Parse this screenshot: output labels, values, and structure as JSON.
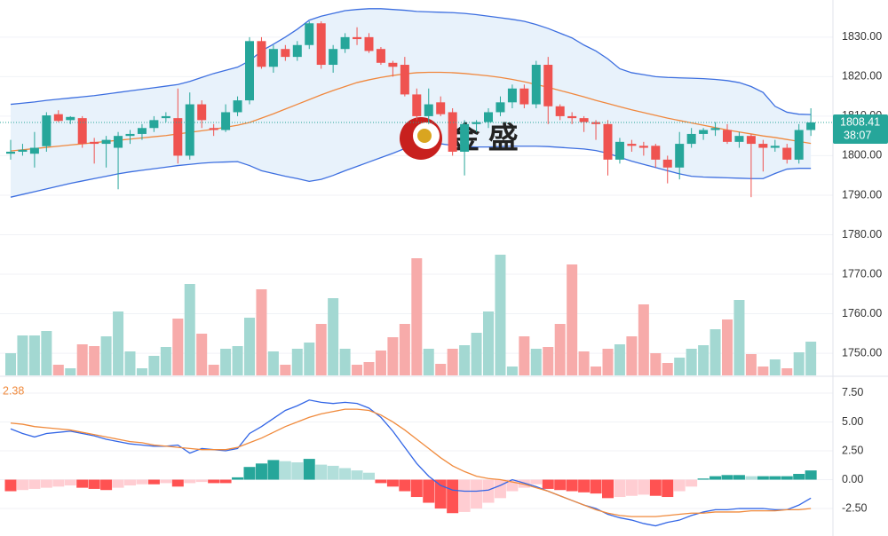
{
  "chart_data": [
    {
      "type": "candlestick",
      "open": [
        1800.5,
        1801,
        1800.5,
        1802.4,
        1810.5,
        1809,
        1809.5,
        1803.5,
        1803,
        1802,
        1805,
        1805.5,
        1807,
        1809.5,
        1809.5,
        1800,
        1813,
        1807,
        1806.5,
        1811,
        1814,
        1829,
        1822.5,
        1827,
        1825,
        1828,
        1833.5,
        1823,
        1827,
        1830,
        1830,
        1827,
        1823.5,
        1823,
        1815.5,
        1810,
        1813.5,
        1811,
        1801,
        1808,
        1808.5,
        1811,
        1813.5,
        1817,
        1813,
        1823,
        1812.5,
        1810,
        1809.5,
        1808.5,
        1808,
        1799,
        1803,
        1802.5,
        1802.5,
        1799,
        1797,
        1803,
        1805.5,
        1806.5,
        1806.5,
        1803.5,
        1805,
        1803,
        1802,
        1802,
        1799,
        1806.5
      ],
      "high": [
        1804,
        1803,
        1806,
        1811,
        1811.5,
        1810,
        1810,
        1804.5,
        1805,
        1806,
        1806.5,
        1808,
        1810,
        1811,
        1817,
        1816,
        1814,
        1808,
        1813,
        1815,
        1830,
        1830,
        1828,
        1828,
        1829,
        1834,
        1834,
        1828,
        1831,
        1832.5,
        1831,
        1827.5,
        1824,
        1825,
        1817,
        1817,
        1815,
        1812,
        1809,
        1809,
        1812,
        1815,
        1818,
        1818,
        1824,
        1825,
        1813,
        1811,
        1810,
        1809,
        1809,
        1804.5,
        1804,
        1803.5,
        1803,
        1800,
        1806,
        1807,
        1807,
        1808.5,
        1808,
        1806,
        1805.5,
        1804,
        1804,
        1803,
        1808,
        1812
      ],
      "low": [
        1799,
        1800,
        1797,
        1801,
        1808.5,
        1808,
        1802,
        1798,
        1797,
        1791.5,
        1803,
        1804,
        1806,
        1808.5,
        1798,
        1799,
        1807,
        1805,
        1806,
        1810,
        1813,
        1822,
        1821,
        1824,
        1824,
        1827,
        1822,
        1821,
        1826,
        1828,
        1826,
        1823,
        1820,
        1815,
        1809,
        1808,
        1810,
        1800,
        1795,
        1806,
        1807,
        1810,
        1812,
        1812,
        1812,
        1808,
        1809,
        1808,
        1806,
        1804,
        1795,
        1798,
        1801,
        1800,
        1797,
        1793,
        1794,
        1802,
        1804,
        1805,
        1803,
        1802,
        1789.5,
        1796,
        1801,
        1798,
        1798,
        1805
      ],
      "close": [
        1801,
        1801.5,
        1802,
        1810.2,
        1808.8,
        1809.8,
        1803,
        1803,
        1804,
        1805,
        1805.5,
        1807,
        1809,
        1810,
        1800,
        1813,
        1809,
        1806.5,
        1811,
        1814,
        1829,
        1822.5,
        1827,
        1825,
        1828,
        1833.5,
        1823,
        1827,
        1830,
        1829.5,
        1826.5,
        1823.5,
        1822.5,
        1815.5,
        1810,
        1813,
        1810.5,
        1801,
        1808,
        1808.5,
        1811,
        1813.5,
        1817,
        1813,
        1823,
        1812.5,
        1810,
        1809.5,
        1808.5,
        1808,
        1799,
        1803.5,
        1802.5,
        1802,
        1799,
        1797,
        1803,
        1805.5,
        1806.5,
        1807,
        1803.5,
        1805,
        1803,
        1802,
        1802.5,
        1799,
        1806.5,
        1808.41
      ],
      "up_color": "#26a69a",
      "down_color": "#ef5350",
      "series": [
        {
          "color": "#3d6fe0",
          "values": [
            1813,
            1813.3,
            1813.6,
            1814,
            1814.3,
            1814.6,
            1814.9,
            1815.2,
            1815.6,
            1816,
            1816.4,
            1816.8,
            1817.2,
            1817.6,
            1818,
            1818.8,
            1819.8,
            1820.8,
            1821.6,
            1822.4,
            1824,
            1826.5,
            1828.2,
            1830,
            1832,
            1834.3,
            1835.3,
            1836,
            1836.7,
            1837,
            1837.2,
            1837.2,
            1837,
            1836.8,
            1836.5,
            1836.4,
            1836.3,
            1836.2,
            1836,
            1835.7,
            1835.3,
            1834.9,
            1834.5,
            1834,
            1833.2,
            1832.2,
            1831,
            1829.8,
            1828,
            1826.5,
            1824.5,
            1822,
            1821,
            1820.5,
            1820,
            1819.8,
            1819.7,
            1819.6,
            1819.5,
            1819.3,
            1819,
            1818.5,
            1817.5,
            1816,
            1812.5,
            1811,
            1810.5,
            1810.4
          ]
        },
        {
          "color": "#f0883e",
          "values": [
            1801.2,
            1801.5,
            1801.8,
            1802.1,
            1802.4,
            1802.7,
            1803,
            1803.3,
            1803.6,
            1803.9,
            1804.2,
            1804.5,
            1804.8,
            1805.1,
            1805.5,
            1805.9,
            1806.3,
            1806.7,
            1807.2,
            1807.7,
            1808.4,
            1809.5,
            1810.6,
            1811.8,
            1813,
            1814.2,
            1815.4,
            1816.5,
            1817.5,
            1818.5,
            1819.2,
            1819.8,
            1820.3,
            1820.7,
            1821,
            1821.1,
            1821.1,
            1821,
            1820.8,
            1820.5,
            1820.2,
            1819.8,
            1819.3,
            1818.7,
            1818,
            1817.3,
            1816.5,
            1815.7,
            1814.9,
            1814,
            1813.2,
            1812.4,
            1811.6,
            1810.9,
            1810.2,
            1809.5,
            1808.9,
            1808.3,
            1807.7,
            1807.1,
            1806.5,
            1806,
            1805.5,
            1805,
            1804.6,
            1804.1,
            1803.6,
            1803.1
          ]
        },
        {
          "color": "#3d6fe0",
          "values": [
            1789.5,
            1790.2,
            1790.9,
            1791.6,
            1792.3,
            1793,
            1793.6,
            1794.2,
            1794.8,
            1795.4,
            1795.9,
            1796.3,
            1796.7,
            1797.1,
            1797.5,
            1797.8,
            1798.1,
            1798.3,
            1798.4,
            1798.5,
            1797.5,
            1796.2,
            1795.5,
            1794.8,
            1794.2,
            1793.5,
            1794,
            1795,
            1796.2,
            1797.3,
            1798.4,
            1799.5,
            1800.6,
            1801.8,
            1802.8,
            1803.4,
            1803,
            1802.6,
            1802.3,
            1802.2,
            1802.2,
            1802.3,
            1802.4,
            1802.4,
            1802.4,
            1802.3,
            1802.1,
            1801.9,
            1801.7,
            1801.3,
            1800.6,
            1799.6,
            1798.6,
            1797.8,
            1797,
            1796.2,
            1795.4,
            1794.8,
            1794.6,
            1794.5,
            1794.4,
            1794.3,
            1794.2,
            1794.2,
            1795.5,
            1796.6,
            1796.8,
            1796.8
          ]
        }
      ],
      "band_fill": "#e8f2fb",
      "ylim": [
        1744.4,
        1839.4
      ],
      "yticks": [
        {
          "value": 1750,
          "label": "1750.00"
        },
        {
          "value": 1760,
          "label": "1760.00"
        },
        {
          "value": 1770,
          "label": "1770.00"
        },
        {
          "value": 1780,
          "label": "1780.00"
        },
        {
          "value": 1790,
          "label": "1790.00"
        },
        {
          "value": 1800,
          "label": "1800.00"
        },
        {
          "value": 1810,
          "label": "1810.00"
        },
        {
          "value": 1820,
          "label": "1820.00"
        },
        {
          "value": 1830,
          "label": "1830.00"
        }
      ],
      "grid": true,
      "last_price": 1808.41,
      "timer": "38:07",
      "watermark": "金 盛"
    },
    {
      "type": "volume",
      "values": [
        25,
        45,
        45,
        50,
        12,
        8,
        35,
        33,
        44,
        72,
        27,
        8,
        22,
        32,
        64,
        103,
        47,
        12,
        30,
        33,
        65,
        97,
        27,
        12,
        30,
        37,
        58,
        87,
        30,
        12,
        15,
        28,
        43,
        58,
        132,
        30,
        13,
        30,
        34,
        48,
        72,
        136,
        10,
        44,
        30,
        32,
        58,
        125,
        27,
        10,
        30,
        35,
        44,
        80,
        25,
        14,
        20,
        30,
        34,
        52,
        63,
        85,
        24,
        10,
        18,
        8,
        26,
        38
      ],
      "up_color": "#a3d8d2",
      "down_color": "#f7abaa"
    },
    {
      "type": "macd",
      "current_value": 2.38,
      "histogram": [
        -1.0,
        -0.9,
        -0.8,
        -0.7,
        -0.6,
        -0.5,
        -0.7,
        -0.8,
        -0.9,
        -0.7,
        -0.5,
        -0.4,
        -0.4,
        -0.3,
        -0.6,
        -0.3,
        -0.2,
        -0.3,
        -0.3,
        0.2,
        1.1,
        1.4,
        1.7,
        1.6,
        1.5,
        1.8,
        1.3,
        1.2,
        1.0,
        0.8,
        0.6,
        -0.3,
        -0.6,
        -1.0,
        -1.5,
        -2.0,
        -2.5,
        -2.9,
        -2.8,
        -2.5,
        -2.0,
        -1.6,
        -1.0,
        -0.7,
        -0.4,
        -0.8,
        -0.9,
        -1.0,
        -1.1,
        -1.2,
        -1.6,
        -1.5,
        -1.4,
        -1.3,
        -1.4,
        -1.5,
        -1.0,
        -0.6,
        0.1,
        0.3,
        0.4,
        0.4,
        0.3,
        0.3,
        0.3,
        0.3,
        0.5,
        0.8
      ],
      "hist_colors": [
        "#26a69a",
        "#b2dfdb",
        "#ff5252",
        "#ffcdd2"
      ],
      "series": [
        {
          "color": "#3366e6",
          "values": [
            4.4,
            4.0,
            3.7,
            4.0,
            4.1,
            4.2,
            4.0,
            3.8,
            3.5,
            3.3,
            3.1,
            3.0,
            2.9,
            2.9,
            3.0,
            2.3,
            2.7,
            2.6,
            2.5,
            2.7,
            4.0,
            4.6,
            5.3,
            6.0,
            6.4,
            6.9,
            6.7,
            6.6,
            6.7,
            6.6,
            6.2,
            5.4,
            4.2,
            2.8,
            1.4,
            0.3,
            -0.5,
            -0.9,
            -1.0,
            -1.0,
            -0.9,
            -0.5,
            0.0,
            -0.3,
            -0.6,
            -1.0,
            -1.4,
            -1.8,
            -2.2,
            -2.5,
            -3.0,
            -3.3,
            -3.5,
            -3.8,
            -4.0,
            -3.7,
            -3.5,
            -3.1,
            -2.8,
            -2.6,
            -2.6,
            -2.5,
            -2.5,
            -2.5,
            -2.6,
            -2.6,
            -2.2,
            -1.6
          ]
        },
        {
          "color": "#f08a3c",
          "values": [
            4.9,
            4.8,
            4.6,
            4.5,
            4.4,
            4.3,
            4.1,
            3.9,
            3.7,
            3.5,
            3.3,
            3.2,
            3.0,
            2.9,
            2.8,
            2.7,
            2.6,
            2.6,
            2.6,
            2.8,
            3.2,
            3.6,
            4.1,
            4.6,
            5.0,
            5.4,
            5.7,
            5.9,
            6.1,
            6.1,
            6.0,
            5.6,
            5.0,
            4.3,
            3.5,
            2.7,
            1.9,
            1.2,
            0.7,
            0.3,
            0.1,
            0.0,
            -0.2,
            -0.4,
            -0.7,
            -1.0,
            -1.4,
            -1.8,
            -2.2,
            -2.6,
            -2.9,
            -3.1,
            -3.2,
            -3.2,
            -3.2,
            -3.1,
            -3.0,
            -2.9,
            -2.9,
            -2.8,
            -2.8,
            -2.8,
            -2.7,
            -2.7,
            -2.7,
            -2.6,
            -2.6,
            -2.5
          ]
        }
      ],
      "ylim": [
        -4.88,
        8.88
      ],
      "yticks": [
        {
          "value": -2.5,
          "label": "-2.50"
        },
        {
          "value": 0,
          "label": "0.00"
        },
        {
          "value": 2.5,
          "label": "2.50"
        },
        {
          "value": 5,
          "label": "5.00"
        },
        {
          "value": 7.5,
          "label": "7.50"
        }
      ],
      "grid": true
    }
  ]
}
